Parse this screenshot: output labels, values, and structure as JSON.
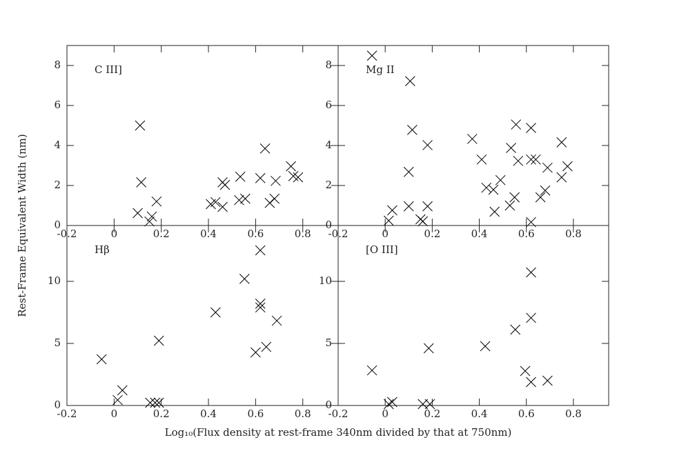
{
  "xlabel": "Log₁₀(Flux density at rest-frame 340nm divided by that at 750nm)",
  "ylabel": "Rest-Frame Equivalent Width (nm)",
  "chart_data": [
    {
      "type": "scatter",
      "label": "C III]",
      "color": "#000000",
      "marker": "x",
      "x": [
        0.11,
        0.115,
        0.1,
        0.18,
        0.16,
        0.15,
        0.41,
        0.43,
        0.46,
        0.46,
        0.47,
        0.535,
        0.53,
        0.556,
        0.62,
        0.64,
        0.66,
        0.68,
        0.685,
        0.75,
        0.76,
        0.78
      ],
      "values": [
        5.0,
        2.16,
        0.62,
        1.2,
        0.45,
        0.2,
        1.07,
        1.17,
        0.93,
        2.16,
        2.03,
        2.44,
        1.27,
        1.34,
        2.37,
        3.85,
        1.13,
        1.34,
        2.23,
        2.96,
        2.47,
        2.41
      ],
      "xlim": [
        -0.2,
        0.95
      ],
      "ylim": [
        0,
        9
      ],
      "xticks": [
        -0.2,
        0,
        0.2,
        0.4,
        0.6,
        0.8
      ],
      "yticks": [
        0,
        2,
        4,
        6,
        8
      ]
    },
    {
      "type": "scatter",
      "label": "Mg II",
      "color": "#000000",
      "marker": "x",
      "x": [
        -0.056,
        0.106,
        0.115,
        0.18,
        0.1,
        0.1,
        0.015,
        0.03,
        0.15,
        0.16,
        0.18,
        0.37,
        0.41,
        0.43,
        0.46,
        0.465,
        0.49,
        0.535,
        0.53,
        0.55,
        0.556,
        0.565,
        0.62,
        0.62,
        0.62,
        0.64,
        0.66,
        0.68,
        0.69,
        0.75,
        0.75,
        0.775
      ],
      "values": [
        8.49,
        7.22,
        4.78,
        4.02,
        2.68,
        0.96,
        0.24,
        0.76,
        0.31,
        0.21,
        0.96,
        4.33,
        3.3,
        1.89,
        1.79,
        0.69,
        2.27,
        3.88,
        1.0,
        1.41,
        5.05,
        3.23,
        4.88,
        3.3,
        0.17,
        3.3,
        1.41,
        1.75,
        2.89,
        4.16,
        2.41,
        2.96
      ],
      "xlim": [
        -0.2,
        0.95
      ],
      "ylim": [
        0,
        9
      ],
      "xticks": [
        -0.2,
        0,
        0.2,
        0.4,
        0.6,
        0.8
      ],
      "yticks": [
        0,
        2,
        4,
        6,
        8
      ]
    },
    {
      "type": "scatter",
      "label": "Hβ",
      "color": "#000000",
      "marker": "x",
      "x": [
        -0.053,
        0.035,
        0.015,
        0.153,
        0.174,
        0.19,
        0.19,
        0.43,
        0.553,
        0.62,
        0.62,
        0.62,
        0.6,
        0.645,
        0.69
      ],
      "values": [
        3.72,
        1.22,
        0.44,
        0.22,
        0.22,
        0.22,
        5.22,
        7.5,
        10.2,
        12.5,
        8.2,
        7.9,
        4.28,
        4.72,
        6.83
      ],
      "xlim": [
        -0.2,
        0.95
      ],
      "ylim": [
        0,
        14.5
      ],
      "xticks": [
        -0.2,
        0,
        0.2,
        0.4,
        0.6,
        0.8
      ],
      "yticks": [
        0,
        5,
        10
      ]
    },
    {
      "type": "scatter",
      "label": "[O III]",
      "color": "#000000",
      "marker": "x",
      "x": [
        -0.056,
        0.03,
        0.015,
        0.16,
        0.19,
        0.185,
        0.425,
        0.553,
        0.595,
        0.62,
        0.62,
        0.62,
        0.69
      ],
      "values": [
        2.83,
        0.28,
        0.11,
        0.11,
        0.11,
        4.61,
        4.78,
        6.11,
        2.78,
        10.72,
        7.06,
        1.89,
        2.0
      ],
      "xlim": [
        -0.2,
        0.95
      ],
      "ylim": [
        0,
        14.5
      ],
      "xticks": [
        -0.2,
        0,
        0.2,
        0.4,
        0.6,
        0.8
      ],
      "yticks": [
        0,
        5,
        10
      ]
    }
  ]
}
